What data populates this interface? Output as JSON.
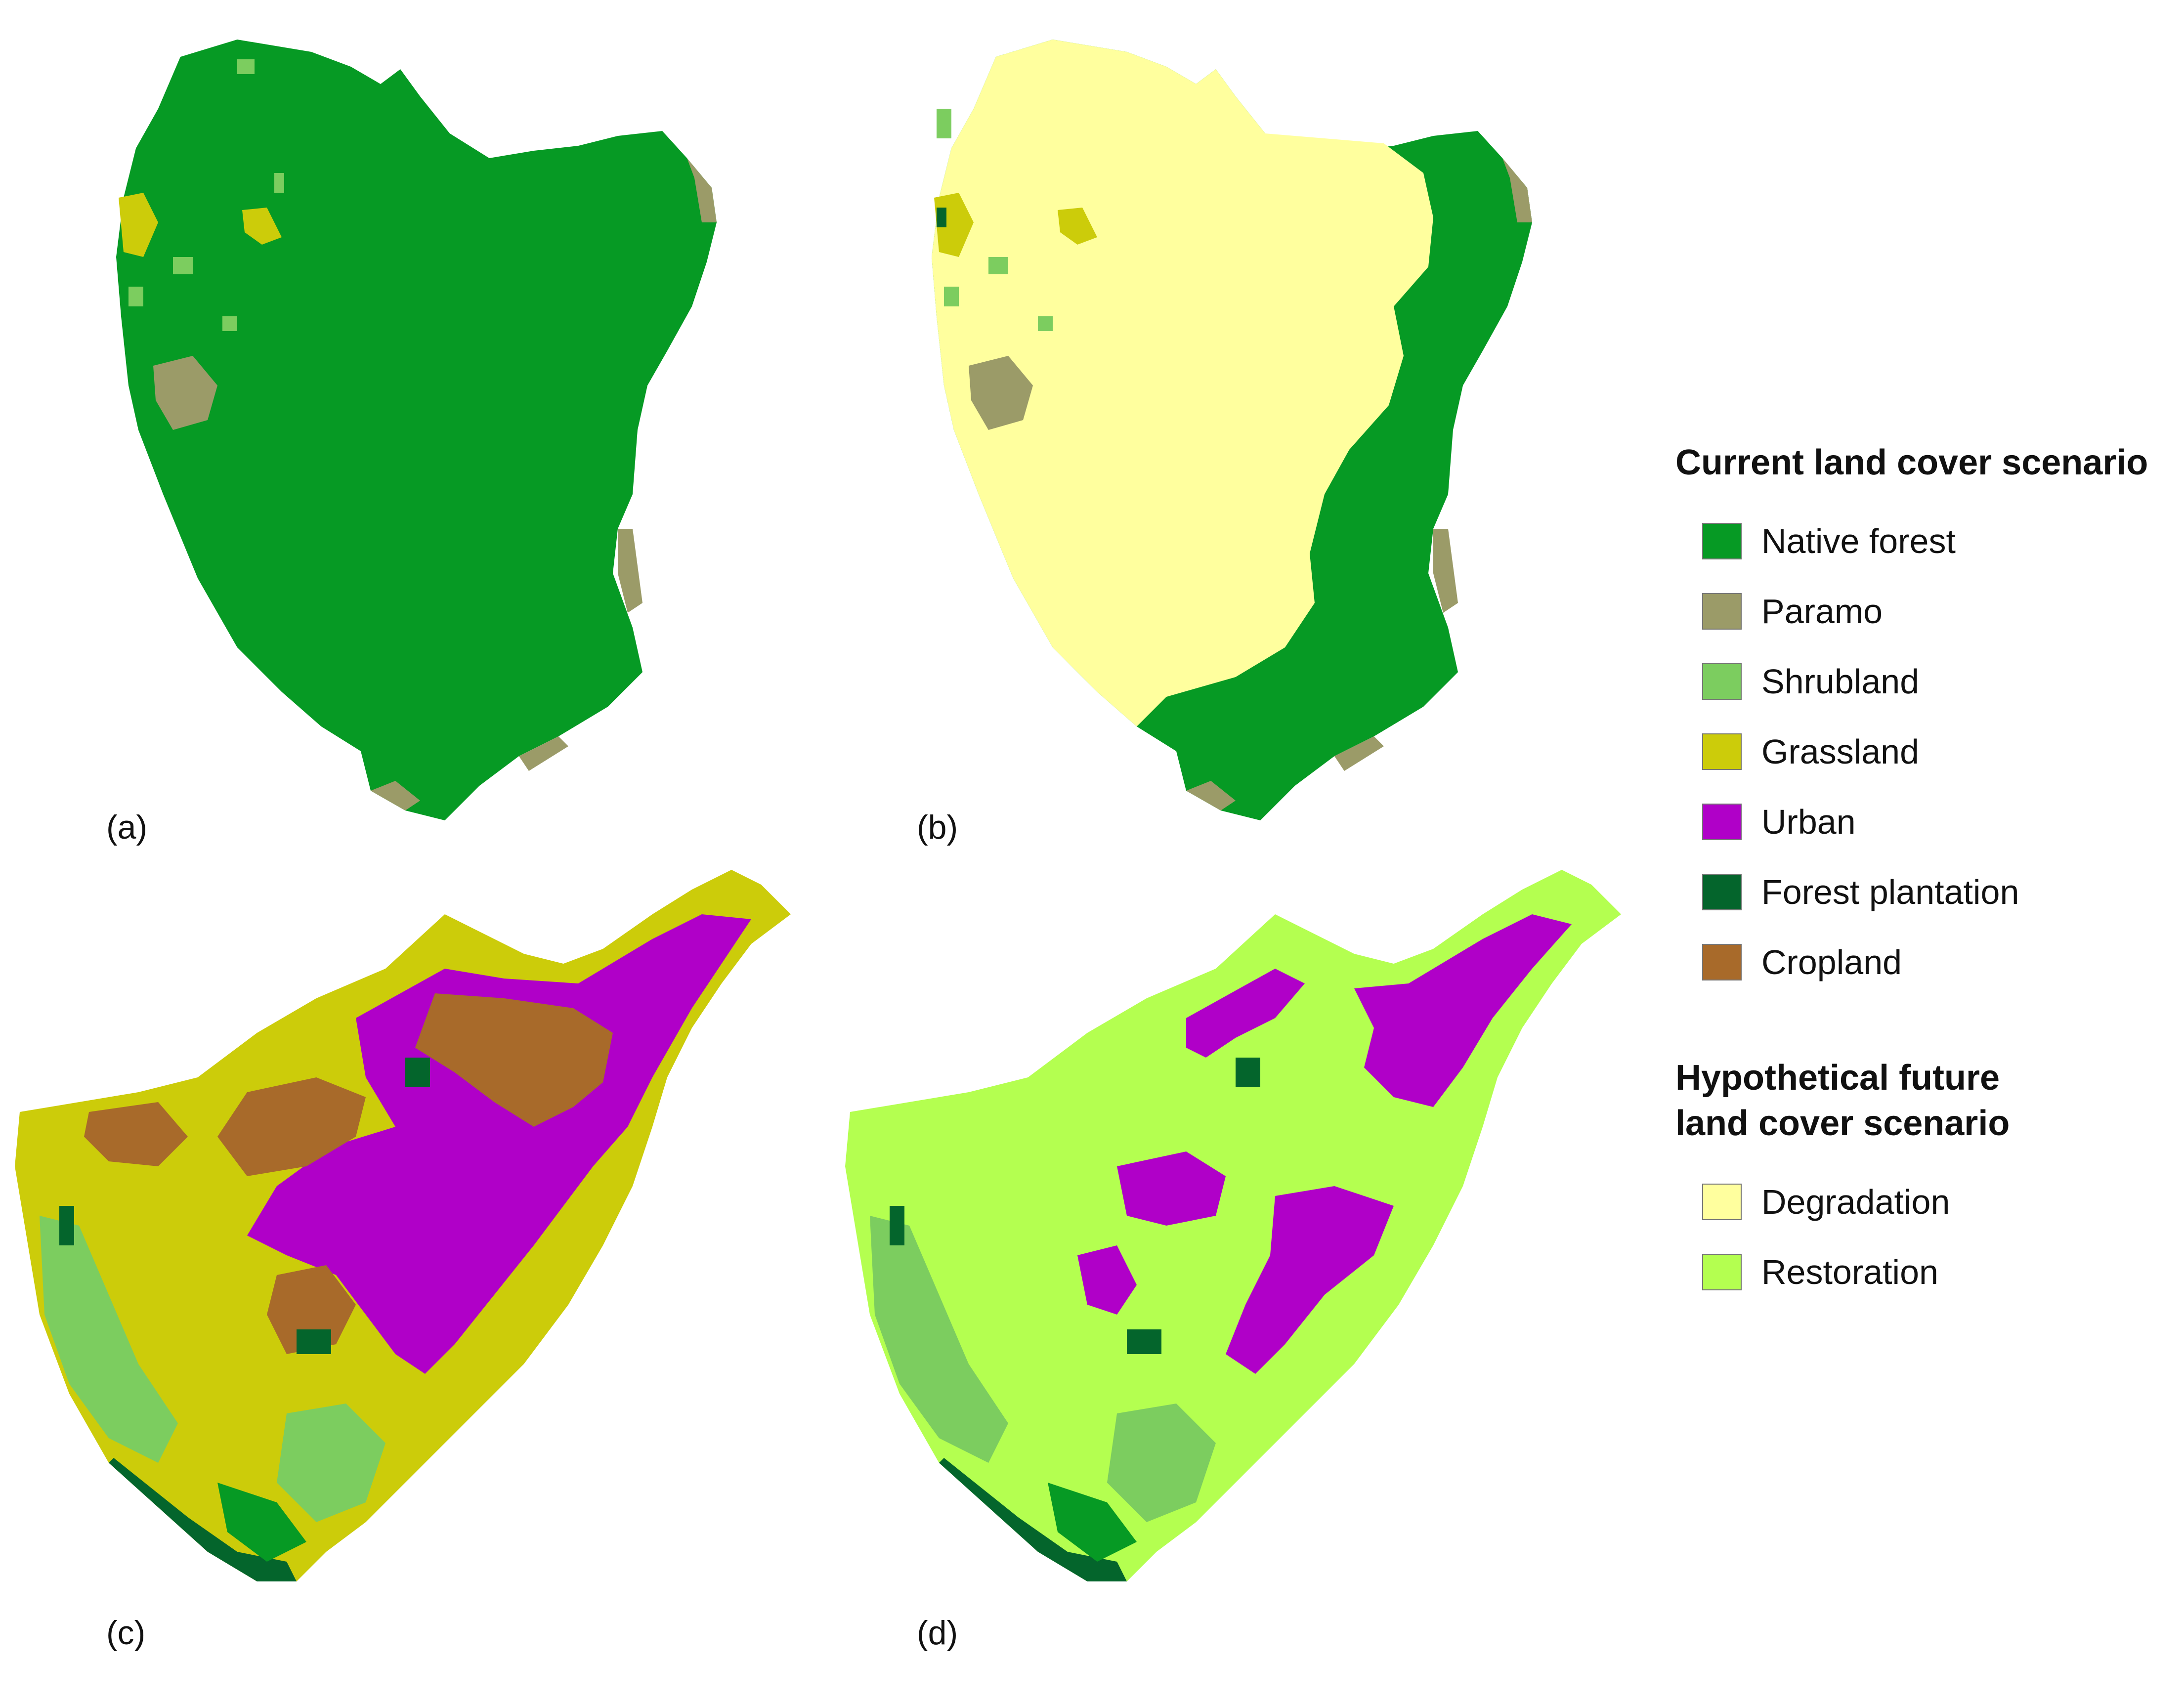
{
  "panels": [
    {
      "id": "a",
      "label": "(a)"
    },
    {
      "id": "b",
      "label": "(b)"
    },
    {
      "id": "c",
      "label": "(c)"
    },
    {
      "id": "d",
      "label": "(d)"
    }
  ],
  "legend_current": {
    "title": "Current land cover scenario",
    "items": [
      {
        "label": "Native forest",
        "color": "#069a24"
      },
      {
        "label": "Paramo",
        "color": "#9b9b68"
      },
      {
        "label": "Shrubland",
        "color": "#7ccd5f"
      },
      {
        "label": "Grassland",
        "color": "#cccc0a"
      },
      {
        "label": "Urban",
        "color": "#b000c8"
      },
      {
        "label": "Forest plantation",
        "color": "#04652c"
      },
      {
        "label": "Cropland",
        "color": "#a86a2a"
      }
    ]
  },
  "legend_future": {
    "title_line1": "Hypothetical future",
    "title_line2": "land cover scenario",
    "items": [
      {
        "label": "Degradation",
        "color": "#ffff9e"
      },
      {
        "label": "Restoration",
        "color": "#b4ff50"
      }
    ]
  }
}
